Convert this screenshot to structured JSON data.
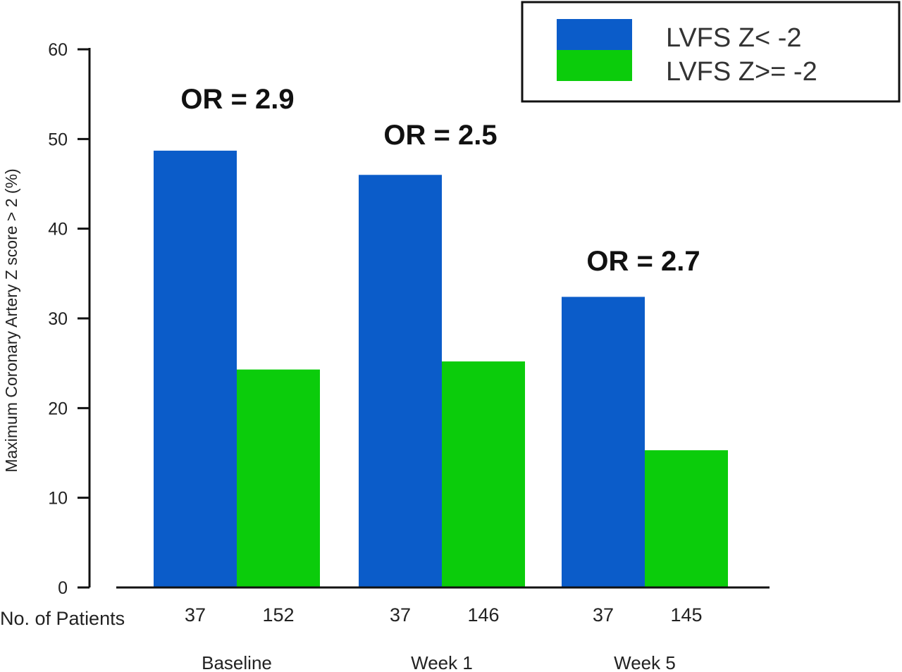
{
  "chart_data": {
    "type": "bar",
    "categories": [
      "Baseline",
      "Week 1",
      "Week 5"
    ],
    "series": [
      {
        "name": "LVFS Z< -2",
        "values": [
          48.7,
          46.0,
          32.4
        ],
        "color": "#0b5cc9"
      },
      {
        "name": "LVFS Z>= -2",
        "values": [
          24.3,
          25.2,
          15.3
        ],
        "color": "#0bcc0b"
      }
    ],
    "ylabel": "Maximum Coronary Artery Z score > 2 (%)",
    "ylim": [
      0,
      60
    ],
    "yticks": [
      0,
      10,
      20,
      30,
      40,
      50,
      60
    ],
    "annotations": [
      "OR = 2.9",
      "OR = 2.5",
      "OR = 2.7"
    ],
    "patients_row_label": "No. of Patients",
    "patients": [
      [
        "37",
        "152"
      ],
      [
        "37",
        "146"
      ],
      [
        "37",
        "145"
      ]
    ],
    "legend_position": "top-right",
    "grid": false
  }
}
